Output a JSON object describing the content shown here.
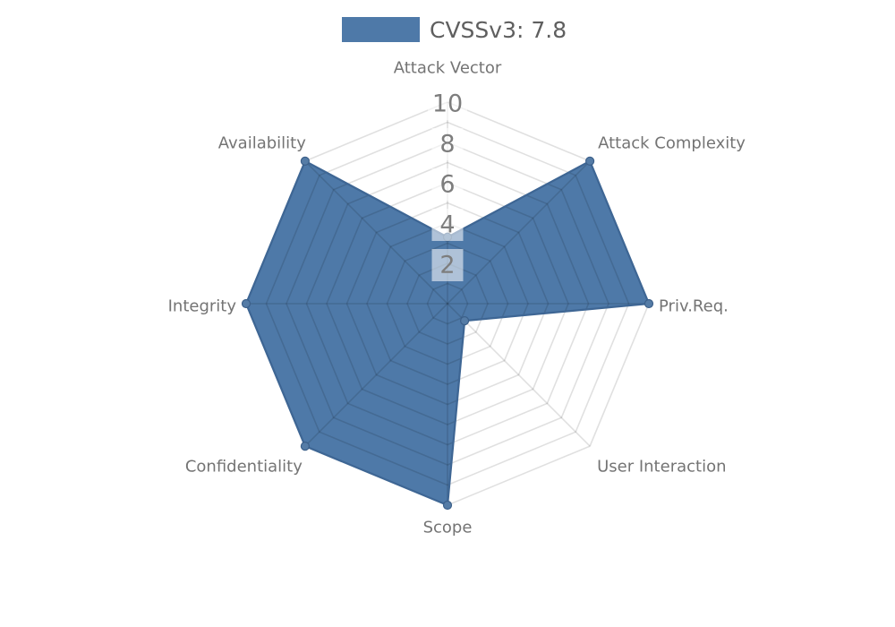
{
  "page": {
    "background": "#ffffff"
  },
  "legend": {
    "label": "CVSSv3: 7.8",
    "swatch_color": "#4e79a8"
  },
  "chart_data": {
    "type": "radar",
    "title": "",
    "axes": [
      "Attack Vector",
      "Attack Complexity",
      "Priv.Req.",
      "User Interaction",
      "Scope",
      "Confidentiality",
      "Integrity",
      "Availability"
    ],
    "series": [
      {
        "name": "CVSSv3: 7.8",
        "values": [
          3.3,
          10,
          10,
          1.2,
          10,
          10,
          10,
          10
        ],
        "color": "#4e79a8"
      }
    ],
    "scale": {
      "min": 0,
      "max": 10,
      "ring_step": 1,
      "tick_step": 2,
      "tick_labels": [
        "2",
        "4",
        "6",
        "8",
        "10"
      ]
    },
    "legend_position": "top-center",
    "grid": "octagonal rings every 1 unit, 8 spokes, faint",
    "colors": {
      "fill": "#4e79a8",
      "border": "#3e6694",
      "marker": "#557ca6",
      "marker_stroke": "#3c608a",
      "grid_line": "rgba(0,0,0,0.12)",
      "tick_box": "rgba(255,255,255,0.55)",
      "tick_text": "#7d7d7d",
      "axis_text": "#747474",
      "legend_text": "#5f5f5f"
    }
  }
}
